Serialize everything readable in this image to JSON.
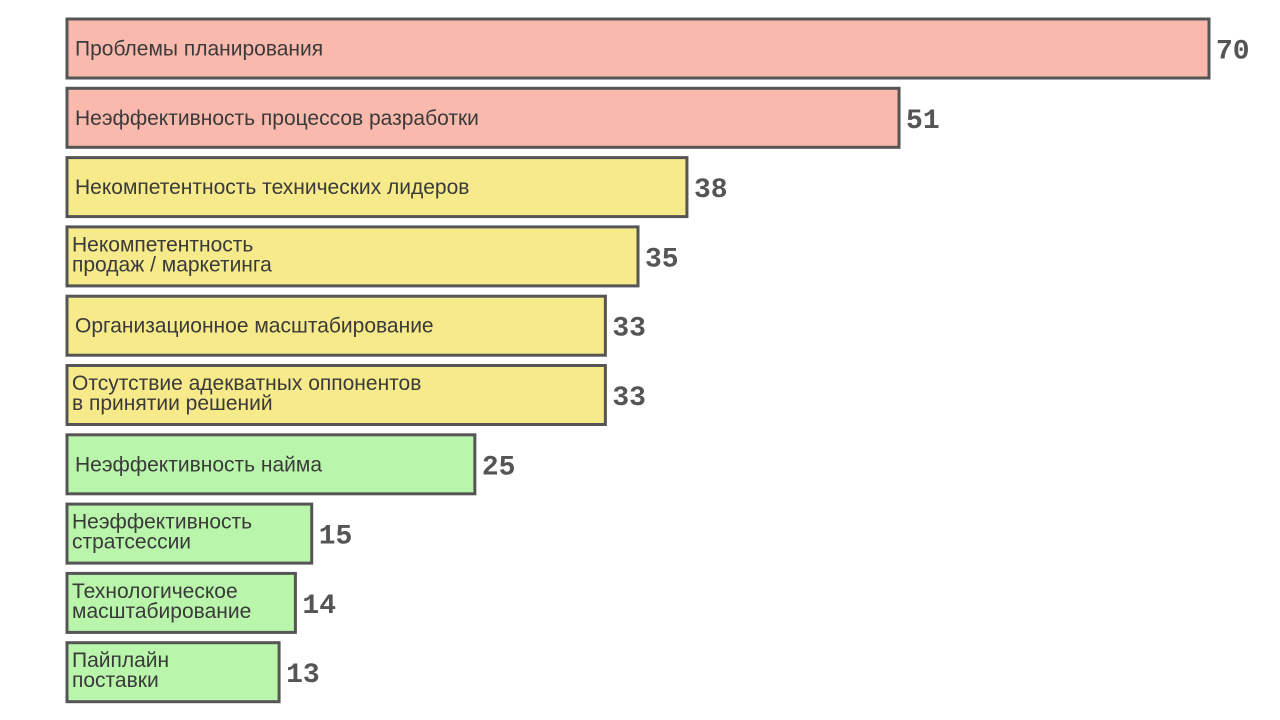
{
  "chart_data": {
    "type": "bar",
    "orientation": "horizontal",
    "title": "",
    "xlabel": "",
    "ylabel": "",
    "xlim": [
      0,
      70
    ],
    "grid": false,
    "legend": "none",
    "categories": [
      [
        "Проблемы планирования"
      ],
      [
        "Неэффективность процессов разработки"
      ],
      [
        "Некомпетентность технических лидеров"
      ],
      [
        "Некомпетентность",
        "продаж / маркетинга"
      ],
      [
        "Организационное масштабирование"
      ],
      [
        "Отсутствие адекватных оппонентов",
        "в принятии решений"
      ],
      [
        "Неэффективность найма"
      ],
      [
        "Неэффективность",
        "стратсессии"
      ],
      [
        "Технологическое",
        "масштабирование"
      ],
      [
        "Пайплайн",
        "поставки"
      ]
    ],
    "values": [
      70,
      51,
      38,
      35,
      33,
      33,
      25,
      15,
      14,
      13
    ],
    "bar_colors": [
      "#f9b9ad",
      "#f9b9ad",
      "#f6ea8a",
      "#f6ea8a",
      "#f6ea8a",
      "#f6ea8a",
      "#b9f5aa",
      "#b9f5aa",
      "#b9f5aa",
      "#b9f5aa"
    ],
    "bar_border_color": "#555555",
    "value_label_color": "#555555"
  }
}
